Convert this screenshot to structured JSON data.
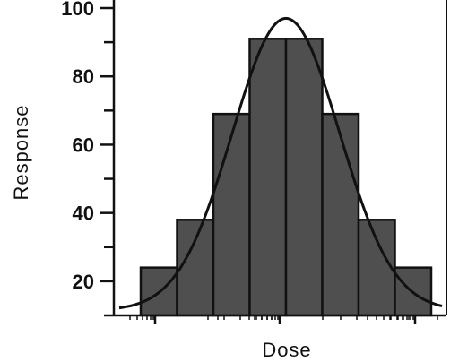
{
  "chart_data": {
    "type": "bar",
    "xlabel": "Dose",
    "ylabel": "Response",
    "ylim": [
      10,
      100
    ],
    "yticks": [
      20,
      40,
      60,
      80,
      100
    ],
    "x_scale": "log",
    "values": [
      24,
      38,
      69,
      91,
      91,
      69,
      38,
      24
    ],
    "fit_curve": {
      "type": "gaussian",
      "peak": 97,
      "baseline": 11.5,
      "sigma_bins": 1.48
    },
    "grid": false,
    "legend": "none"
  }
}
